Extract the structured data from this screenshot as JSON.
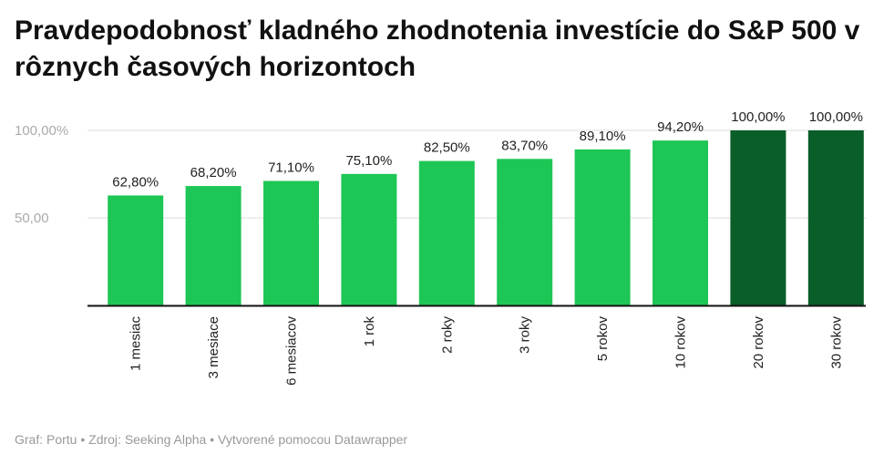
{
  "title": "Pravdepodobnosť kladného zhodnotenia investície do S&P 500 v rôznych časových horizontoch",
  "footer": "Graf: Portu • Zdroj: Seeking Alpha • Vytvorené pomocou Datawrapper",
  "colors": {
    "bar_default": "#1ec655",
    "bar_highlight": "#0a5f29",
    "axis": "#111111",
    "grid": "#dddddd"
  },
  "chart_data": {
    "type": "bar",
    "title": "Pravdepodobnosť kladného zhodnotenia investície do S&P 500 v rôznych časových horizontoch",
    "xlabel": "",
    "ylabel": "",
    "ylim": [
      0,
      100
    ],
    "yticks": [
      {
        "value": 50,
        "label": "50,00"
      },
      {
        "value": 100,
        "label": "100,00%"
      }
    ],
    "categories": [
      "1 mesiac",
      "3 mesiace",
      "6 mesiacov",
      "1 rok",
      "2 roky",
      "3 roky",
      "5 rokov",
      "10 rokov",
      "20 rokov",
      "30 rokov"
    ],
    "values": [
      62.8,
      68.2,
      71.1,
      75.1,
      82.5,
      83.7,
      89.1,
      94.2,
      100,
      100
    ],
    "value_labels": [
      "62,80%",
      "68,20%",
      "71,10%",
      "75,10%",
      "82,50%",
      "83,70%",
      "89,10%",
      "94,20%",
      "100,00%",
      "100,00%"
    ],
    "highlight": [
      false,
      false,
      false,
      false,
      false,
      false,
      false,
      false,
      true,
      true
    ]
  }
}
